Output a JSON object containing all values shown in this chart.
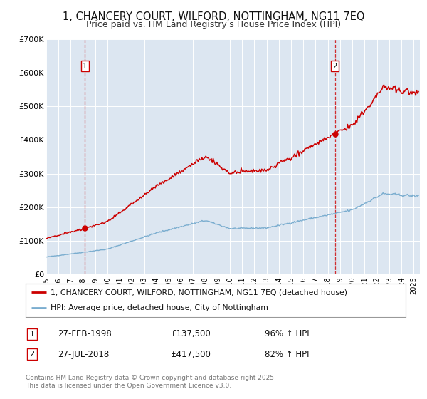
{
  "title": "1, CHANCERY COURT, WILFORD, NOTTINGHAM, NG11 7EQ",
  "subtitle": "Price paid vs. HM Land Registry's House Price Index (HPI)",
  "title_fontsize": 10.5,
  "subtitle_fontsize": 9,
  "bg_color": "#dce6f1",
  "fig_bg_color": "#ffffff",
  "sale1_date_num": 1998.15,
  "sale1_price": 137500,
  "sale2_date_num": 2018.57,
  "sale2_price": 417500,
  "ylim": [
    0,
    700000
  ],
  "xlim": [
    1995,
    2025.5
  ],
  "yticks": [
    0,
    100000,
    200000,
    300000,
    400000,
    500000,
    600000,
    700000
  ],
  "ytick_labels": [
    "£0",
    "£100K",
    "£200K",
    "£300K",
    "£400K",
    "£500K",
    "£600K",
    "£700K"
  ],
  "xticks": [
    1995,
    1996,
    1997,
    1998,
    1999,
    2000,
    2001,
    2002,
    2003,
    2004,
    2005,
    2006,
    2007,
    2008,
    2009,
    2010,
    2011,
    2012,
    2013,
    2014,
    2015,
    2016,
    2017,
    2018,
    2019,
    2020,
    2021,
    2022,
    2023,
    2024,
    2025
  ],
  "red_line_color": "#cc0000",
  "blue_line_color": "#7aadcf",
  "sale_marker_color": "#cc0000",
  "dashed_line_color": "#cc0000",
  "legend_label1": "1, CHANCERY COURT, WILFORD, NOTTINGHAM, NG11 7EQ (detached house)",
  "legend_label2": "HPI: Average price, detached house, City of Nottingham",
  "annotation1_label": "1",
  "annotation1_date": "27-FEB-1998",
  "annotation1_price": "£137,500",
  "annotation1_hpi": "96% ↑ HPI",
  "annotation2_label": "2",
  "annotation2_date": "27-JUL-2018",
  "annotation2_price": "£417,500",
  "annotation2_hpi": "82% ↑ HPI",
  "footer": "Contains HM Land Registry data © Crown copyright and database right 2025.\nThis data is licensed under the Open Government Licence v3.0."
}
